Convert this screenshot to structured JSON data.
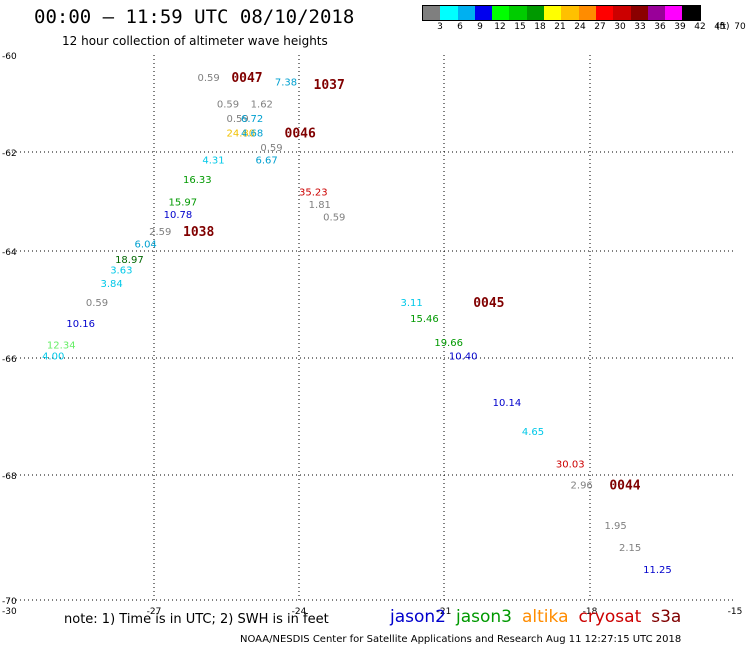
{
  "header": {
    "title": "00:00 – 11:59 UTC 08/10/2018",
    "subtitle": "12 hour collection of altimeter wave heights"
  },
  "legend": {
    "colors": [
      "#7f7f7f",
      "#00ffff",
      "#00b0f0",
      "#0000ee",
      "#00ff00",
      "#00cc00",
      "#009900",
      "#ffff00",
      "#ffc000",
      "#ff8c00",
      "#ff0000",
      "#cc0000",
      "#8b0000",
      "#990099",
      "#ff00ff",
      "#000000"
    ],
    "labels": [
      "3",
      "6",
      "9",
      "12",
      "15",
      "18",
      "21",
      "24",
      "27",
      "30",
      "33",
      "36",
      "39",
      "42",
      "45",
      "70"
    ],
    "unit": "(ft)"
  },
  "map": {
    "x_ticks": [
      "-30",
      "-27",
      "-24",
      "-21",
      "-18",
      "-15"
    ],
    "y_ticks": [
      "-60",
      "-62",
      "-64",
      "-66",
      "-68",
      "-70"
    ],
    "x_values": [
      -30,
      -27,
      -24,
      -21,
      -18,
      -15
    ],
    "y_values": [
      -60,
      -62,
      -64,
      -66,
      -68,
      -70
    ],
    "grid": "dotted"
  },
  "chart_data": {
    "type": "scatter",
    "xlim": [
      -30,
      -15
    ],
    "ylim": [
      -70,
      -60
    ],
    "pass_labels": [
      {
        "label": "0047",
        "color": "#800000",
        "x": -25.4,
        "y": -60.45
      },
      {
        "label": "1037",
        "color": "#800000",
        "x": -23.7,
        "y": -60.6
      },
      {
        "label": "0046",
        "color": "#800000",
        "x": -24.3,
        "y": -61.6
      },
      {
        "label": "1038",
        "color": "#800000",
        "x": -26.4,
        "y": -63.6
      },
      {
        "label": "0045",
        "color": "#800000",
        "x": -20.4,
        "y": -64.95
      },
      {
        "label": "0044",
        "color": "#800000",
        "x": -17.6,
        "y": -68.15
      }
    ],
    "points": [
      {
        "label": "0.59",
        "color": "#808080",
        "x": -26.1,
        "y": -60.45
      },
      {
        "label": "7.38",
        "color": "#00a0d0",
        "x": -24.5,
        "y": -60.55
      },
      {
        "label": "0.59",
        "color": "#808080",
        "x": -25.7,
        "y": -61.0
      },
      {
        "label": "1.62",
        "color": "#808080",
        "x": -25.0,
        "y": -61.0
      },
      {
        "label": "0.59",
        "color": "#808080",
        "x": -25.5,
        "y": -61.3
      },
      {
        "label": "6.72",
        "color": "#00a0d0",
        "x": -25.2,
        "y": -61.3
      },
      {
        "label": "24.80",
        "color": "#f0c000",
        "x": -25.5,
        "y": -61.6
      },
      {
        "label": "4.68",
        "color": "#00a0d0",
        "x": -25.2,
        "y": -61.6
      },
      {
        "label": "0.59",
        "color": "#808080",
        "x": -24.8,
        "y": -61.9
      },
      {
        "label": "4.31",
        "color": "#00c8e8",
        "x": -26.0,
        "y": -62.15
      },
      {
        "label": "6.67",
        "color": "#00a0d0",
        "x": -24.9,
        "y": -62.15
      },
      {
        "label": "16.33",
        "color": "#009900",
        "x": -26.4,
        "y": -62.55
      },
      {
        "label": "35.23",
        "color": "#cc0000",
        "x": -24.0,
        "y": -62.8
      },
      {
        "label": "15.97",
        "color": "#009900",
        "x": -26.7,
        "y": -63.0
      },
      {
        "label": "1.81",
        "color": "#808080",
        "x": -23.8,
        "y": -63.05
      },
      {
        "label": "10.78",
        "color": "#0000cc",
        "x": -26.8,
        "y": -63.25
      },
      {
        "label": "0.59",
        "color": "#808080",
        "x": -23.5,
        "y": -63.3
      },
      {
        "label": "2.59",
        "color": "#808080",
        "x": -27.1,
        "y": -63.6
      },
      {
        "label": "6.04",
        "color": "#00a0d0",
        "x": -27.4,
        "y": -63.85
      },
      {
        "label": "18.97",
        "color": "#006600",
        "x": -27.8,
        "y": -64.15
      },
      {
        "label": "3.63",
        "color": "#00c8e8",
        "x": -27.9,
        "y": -64.35
      },
      {
        "label": "3.84",
        "color": "#00c8e8",
        "x": -28.1,
        "y": -64.6
      },
      {
        "label": "0.59",
        "color": "#808080",
        "x": -28.4,
        "y": -64.95
      },
      {
        "label": "3.11",
        "color": "#00c8e8",
        "x": -21.9,
        "y": -64.95
      },
      {
        "label": "15.46",
        "color": "#009900",
        "x": -21.7,
        "y": -65.25
      },
      {
        "label": "10.16",
        "color": "#0000cc",
        "x": -28.8,
        "y": -65.35
      },
      {
        "label": "19.66",
        "color": "#009900",
        "x": -21.2,
        "y": -65.7
      },
      {
        "label": "12.34",
        "color": "#66ee66",
        "x": -29.2,
        "y": -65.75
      },
      {
        "label": "4.00",
        "color": "#00c8e8",
        "x": -29.3,
        "y": -65.95
      },
      {
        "label": "10.40",
        "color": "#0000cc",
        "x": -20.9,
        "y": -65.95
      },
      {
        "label": "10.14",
        "color": "#0000cc",
        "x": -20.0,
        "y": -66.75
      },
      {
        "label": "4.65",
        "color": "#00c8e8",
        "x": -19.4,
        "y": -67.25
      },
      {
        "label": "30.03",
        "color": "#cc0000",
        "x": -18.7,
        "y": -67.8
      },
      {
        "label": "2.96",
        "color": "#808080",
        "x": -18.4,
        "y": -68.15
      },
      {
        "label": "1.95",
        "color": "#808080",
        "x": -17.7,
        "y": -68.8
      },
      {
        "label": "2.15",
        "color": "#808080",
        "x": -17.4,
        "y": -69.15
      },
      {
        "label": "11.25",
        "color": "#0000cc",
        "x": -16.9,
        "y": -69.5
      }
    ]
  },
  "footer": {
    "note": "note: 1) Time is in UTC; 2) SWH is in feet",
    "satellites": [
      {
        "name": "jason2",
        "color": "#0000cc"
      },
      {
        "name": "jason3",
        "color": "#009900"
      },
      {
        "name": "altika",
        "color": "#ff8c00"
      },
      {
        "name": "cryosat",
        "color": "#cc0000"
      },
      {
        "name": "s3a",
        "color": "#800000"
      }
    ],
    "credit": "NOAA/NESDIS Center for Satellite Applications and Research     Aug 11 12:27:15 UTC 2018"
  }
}
